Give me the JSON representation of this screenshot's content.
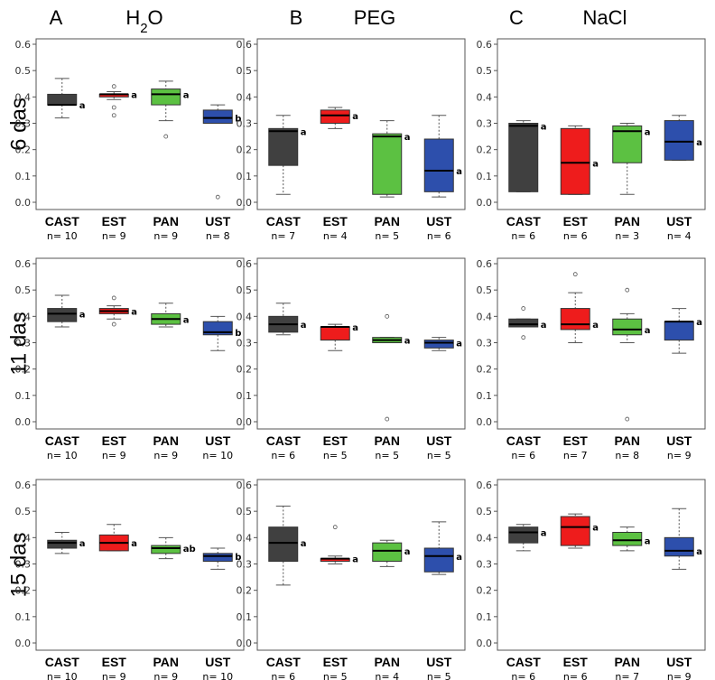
{
  "chart_data": {
    "type": "boxplot-grid",
    "columns": [
      {
        "letter": "A",
        "title": "H",
        "title_sub": "2",
        "title_tail": "O"
      },
      {
        "letter": "B",
        "title": "PEG",
        "title_sub": "",
        "title_tail": ""
      },
      {
        "letter": "C",
        "title": "NaCl",
        "title_sub": "",
        "title_tail": ""
      }
    ],
    "rows": [
      "6 das",
      "11 das",
      "15 das"
    ],
    "categories": [
      "CAST",
      "EST",
      "PAN",
      "UST"
    ],
    "colors": [
      "#404040",
      "#ee1c1c",
      "#5cc142",
      "#2d4fac"
    ],
    "ylim": [
      0,
      0.6
    ],
    "yticks": [
      "0.0",
      "0.1",
      "0.2",
      "0.3",
      "0.4",
      "0.5",
      "0.6"
    ],
    "panels": [
      [
        {
          "boxes": [
            {
              "min": 0.32,
              "q1": 0.37,
              "median": 0.37,
              "q3": 0.41,
              "max": 0.47,
              "outliers": [],
              "sig": "a",
              "n": "n= 10"
            },
            {
              "min": 0.39,
              "q1": 0.4,
              "median": 0.41,
              "q3": 0.41,
              "max": 0.42,
              "outliers": [
                0.44,
                0.36,
                0.33
              ],
              "sig": "a",
              "n": "n= 9"
            },
            {
              "min": 0.31,
              "q1": 0.37,
              "median": 0.41,
              "q3": 0.43,
              "max": 0.46,
              "outliers": [
                0.25
              ],
              "sig": "a",
              "n": "n= 9"
            },
            {
              "min": 0.3,
              "q1": 0.3,
              "median": 0.32,
              "q3": 0.35,
              "max": 0.37,
              "outliers": [
                0.02
              ],
              "sig": "b",
              "n": "n= 8"
            }
          ]
        },
        {
          "boxes": [
            {
              "min": 0.03,
              "q1": 0.14,
              "median": 0.27,
              "q3": 0.28,
              "max": 0.33,
              "outliers": [],
              "sig": "a",
              "n": "n= 7"
            },
            {
              "min": 0.28,
              "q1": 0.3,
              "median": 0.33,
              "q3": 0.35,
              "max": 0.36,
              "outliers": [],
              "sig": "a",
              "n": "n= 4"
            },
            {
              "min": 0.02,
              "q1": 0.03,
              "median": 0.25,
              "q3": 0.26,
              "max": 0.31,
              "outliers": [],
              "sig": "a",
              "n": "n= 5"
            },
            {
              "min": 0.02,
              "q1": 0.04,
              "median": 0.12,
              "q3": 0.24,
              "max": 0.33,
              "outliers": [],
              "sig": "a",
              "n": "n= 6"
            }
          ]
        },
        {
          "boxes": [
            {
              "min": 0.04,
              "q1": 0.04,
              "median": 0.29,
              "q3": 0.3,
              "max": 0.31,
              "outliers": [],
              "sig": "a",
              "n": "n= 6"
            },
            {
              "min": 0.03,
              "q1": 0.03,
              "median": 0.15,
              "q3": 0.28,
              "max": 0.29,
              "outliers": [],
              "sig": "a",
              "n": "n= 6"
            },
            {
              "min": 0.03,
              "q1": 0.15,
              "median": 0.27,
              "q3": 0.29,
              "max": 0.3,
              "outliers": [],
              "sig": "a",
              "n": "n= 3"
            },
            {
              "min": 0.16,
              "q1": 0.16,
              "median": 0.23,
              "q3": 0.31,
              "max": 0.33,
              "outliers": [],
              "sig": "a",
              "n": "n= 4"
            }
          ]
        }
      ],
      [
        {
          "boxes": [
            {
              "min": 0.36,
              "q1": 0.38,
              "median": 0.41,
              "q3": 0.43,
              "max": 0.48,
              "outliers": [],
              "sig": "a",
              "n": "n= 10"
            },
            {
              "min": 0.39,
              "q1": 0.41,
              "median": 0.42,
              "q3": 0.43,
              "max": 0.44,
              "outliers": [
                0.47,
                0.37
              ],
              "sig": "a",
              "n": "n= 9"
            },
            {
              "min": 0.36,
              "q1": 0.37,
              "median": 0.39,
              "q3": 0.41,
              "max": 0.45,
              "outliers": [],
              "sig": "a",
              "n": "n= 9"
            },
            {
              "min": 0.27,
              "q1": 0.33,
              "median": 0.34,
              "q3": 0.38,
              "max": 0.4,
              "outliers": [],
              "sig": "b",
              "n": "n= 10"
            }
          ]
        },
        {
          "boxes": [
            {
              "min": 0.33,
              "q1": 0.34,
              "median": 0.37,
              "q3": 0.4,
              "max": 0.45,
              "outliers": [],
              "sig": "a",
              "n": "n= 6"
            },
            {
              "min": 0.27,
              "q1": 0.31,
              "median": 0.36,
              "q3": 0.36,
              "max": 0.37,
              "outliers": [],
              "sig": "a",
              "n": "n= 5"
            },
            {
              "min": 0.3,
              "q1": 0.3,
              "median": 0.31,
              "q3": 0.32,
              "max": 0.32,
              "outliers": [
                0.4,
                0.01
              ],
              "sig": "a",
              "n": "n= 5"
            },
            {
              "min": 0.27,
              "q1": 0.28,
              "median": 0.3,
              "q3": 0.31,
              "max": 0.32,
              "outliers": [],
              "sig": "a",
              "n": "n= 5"
            }
          ]
        },
        {
          "boxes": [
            {
              "min": 0.36,
              "q1": 0.36,
              "median": 0.37,
              "q3": 0.39,
              "max": 0.39,
              "outliers": [
                0.43,
                0.32
              ],
              "sig": "a",
              "n": "n= 6"
            },
            {
              "min": 0.3,
              "q1": 0.35,
              "median": 0.37,
              "q3": 0.43,
              "max": 0.49,
              "outliers": [
                0.56
              ],
              "sig": "a",
              "n": "n= 7"
            },
            {
              "min": 0.3,
              "q1": 0.33,
              "median": 0.35,
              "q3": 0.39,
              "max": 0.41,
              "outliers": [
                0.5,
                0.01
              ],
              "sig": "a",
              "n": "n= 8"
            },
            {
              "min": 0.26,
              "q1": 0.31,
              "median": 0.38,
              "q3": 0.38,
              "max": 0.43,
              "outliers": [],
              "sig": "a",
              "n": "n= 9"
            }
          ]
        }
      ],
      [
        {
          "boxes": [
            {
              "min": 0.34,
              "q1": 0.36,
              "median": 0.38,
              "q3": 0.39,
              "max": 0.42,
              "outliers": [],
              "sig": "a",
              "n": "n= 10"
            },
            {
              "min": 0.35,
              "q1": 0.35,
              "median": 0.38,
              "q3": 0.41,
              "max": 0.45,
              "outliers": [],
              "sig": "a",
              "n": "n= 9"
            },
            {
              "min": 0.32,
              "q1": 0.34,
              "median": 0.36,
              "q3": 0.37,
              "max": 0.4,
              "outliers": [],
              "sig": "ab",
              "n": "n= 9"
            },
            {
              "min": 0.28,
              "q1": 0.31,
              "median": 0.33,
              "q3": 0.34,
              "max": 0.36,
              "outliers": [],
              "sig": "b",
              "n": "n= 10"
            }
          ]
        },
        {
          "boxes": [
            {
              "min": 0.22,
              "q1": 0.31,
              "median": 0.38,
              "q3": 0.44,
              "max": 0.52,
              "outliers": [],
              "sig": "a",
              "n": "n= 6"
            },
            {
              "min": 0.3,
              "q1": 0.31,
              "median": 0.32,
              "q3": 0.32,
              "max": 0.33,
              "outliers": [
                0.44
              ],
              "sig": "a",
              "n": "n= 5"
            },
            {
              "min": 0.29,
              "q1": 0.31,
              "median": 0.35,
              "q3": 0.38,
              "max": 0.39,
              "outliers": [],
              "sig": "a",
              "n": "n= 4"
            },
            {
              "min": 0.26,
              "q1": 0.27,
              "median": 0.33,
              "q3": 0.36,
              "max": 0.46,
              "outliers": [],
              "sig": "a",
              "n": "n= 5"
            }
          ]
        },
        {
          "boxes": [
            {
              "min": 0.35,
              "q1": 0.38,
              "median": 0.42,
              "q3": 0.44,
              "max": 0.45,
              "outliers": [],
              "sig": "a",
              "n": "n= 6"
            },
            {
              "min": 0.36,
              "q1": 0.37,
              "median": 0.44,
              "q3": 0.48,
              "max": 0.49,
              "outliers": [],
              "sig": "a",
              "n": "n= 6"
            },
            {
              "min": 0.35,
              "q1": 0.37,
              "median": 0.39,
              "q3": 0.42,
              "max": 0.44,
              "outliers": [],
              "sig": "a",
              "n": "n= 7"
            },
            {
              "min": 0.28,
              "q1": 0.33,
              "median": 0.35,
              "q3": 0.4,
              "max": 0.51,
              "outliers": [],
              "sig": "a",
              "n": "n= 9"
            }
          ]
        }
      ]
    ]
  }
}
